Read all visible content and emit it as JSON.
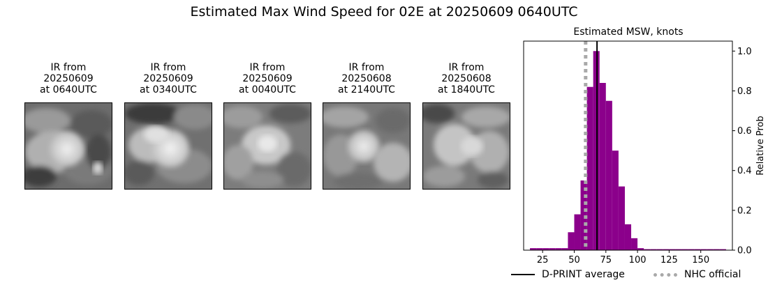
{
  "title": "Estimated Max Wind Speed for 02E at 20250609 0640UTC",
  "ir_panels": [
    {
      "caption": "IR from\n20250609\nat 0640UTC"
    },
    {
      "caption": "IR from\n20250609\nat 0340UTC"
    },
    {
      "caption": "IR from\n20250609\nat 0040UTC"
    },
    {
      "caption": "IR from\n20250608\nat 2140UTC"
    },
    {
      "caption": "IR from\n20250608\nat 1840UTC"
    }
  ],
  "chart_data": {
    "type": "bar",
    "title": "Estimated MSW, knots",
    "xlabel": "",
    "ylabel": "Relative Prob",
    "xlim": [
      10,
      175
    ],
    "ylim": [
      0,
      1.05
    ],
    "xticks": [
      25,
      50,
      75,
      100,
      125,
      150
    ],
    "yticks": [
      0.0,
      0.2,
      0.4,
      0.6,
      0.8,
      1.0
    ],
    "bin_width": 5,
    "bins": [
      {
        "x0": 15,
        "value": 0.01
      },
      {
        "x0": 20,
        "value": 0.01
      },
      {
        "x0": 25,
        "value": 0.01
      },
      {
        "x0": 30,
        "value": 0.01
      },
      {
        "x0": 35,
        "value": 0.01
      },
      {
        "x0": 40,
        "value": 0.01
      },
      {
        "x0": 45,
        "value": 0.09
      },
      {
        "x0": 50,
        "value": 0.18
      },
      {
        "x0": 55,
        "value": 0.35
      },
      {
        "x0": 60,
        "value": 0.82
      },
      {
        "x0": 65,
        "value": 1.0
      },
      {
        "x0": 70,
        "value": 0.84
      },
      {
        "x0": 75,
        "value": 0.75
      },
      {
        "x0": 80,
        "value": 0.5
      },
      {
        "x0": 85,
        "value": 0.32
      },
      {
        "x0": 90,
        "value": 0.13
      },
      {
        "x0": 95,
        "value": 0.06
      },
      {
        "x0": 100,
        "value": 0.01
      },
      {
        "x0": 105,
        "value": 0.005
      },
      {
        "x0": 110,
        "value": 0.005
      },
      {
        "x0": 115,
        "value": 0.005
      },
      {
        "x0": 120,
        "value": 0.005
      },
      {
        "x0": 125,
        "value": 0.005
      },
      {
        "x0": 130,
        "value": 0.005
      },
      {
        "x0": 135,
        "value": 0.005
      },
      {
        "x0": 140,
        "value": 0.005
      },
      {
        "x0": 145,
        "value": 0.005
      },
      {
        "x0": 150,
        "value": 0.005
      },
      {
        "x0": 155,
        "value": 0.005
      },
      {
        "x0": 160,
        "value": 0.005
      },
      {
        "x0": 165,
        "value": 0.005
      }
    ],
    "dprint_average": 68,
    "nhc_official": 59,
    "bar_color": "#8b008b",
    "dprint_color": "#000000",
    "nhc_color": "#a9a9a9",
    "legend": [
      {
        "label": "D-PRINT average",
        "style": "solid"
      },
      {
        "label": "NHC official",
        "style": "dotted"
      }
    ],
    "legend_position": "bottom"
  }
}
